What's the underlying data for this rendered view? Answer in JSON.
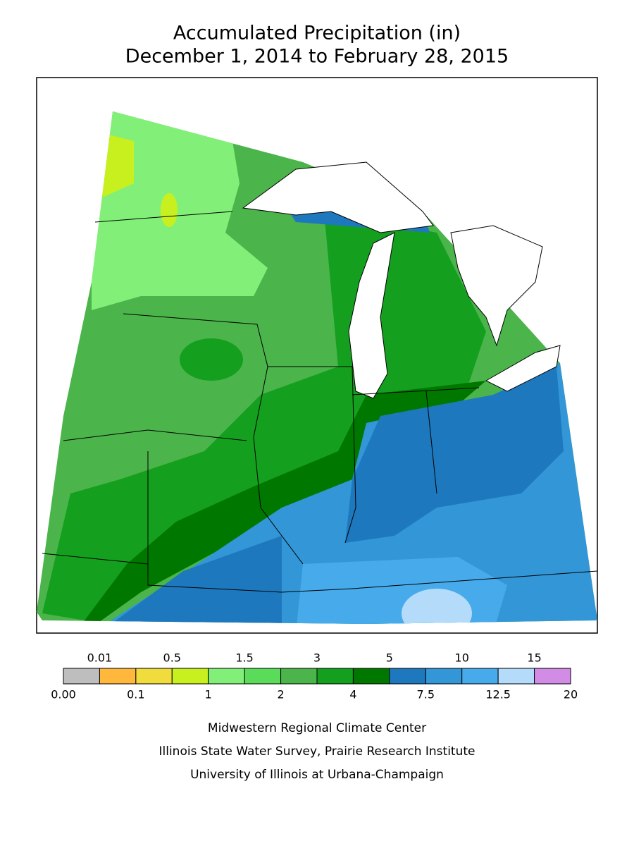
{
  "title": [
    "Accumulated Precipitation (in)",
    "December 1, 2014 to February 28, 2015"
  ],
  "legend": {
    "boundaries": [
      {
        "value": 0,
        "label": "0.00"
      },
      0.01,
      0.1,
      0.5,
      1,
      1.5,
      2,
      3,
      4,
      5,
      7.5,
      10,
      12.5,
      15,
      20
    ],
    "colors": [
      "#bebebe",
      "#ffb83c",
      "#f0dc3c",
      "#c8f01e",
      "#82f078",
      "#5adc5a",
      "#4bb44b",
      "#14a01e",
      "#007800",
      "#1e78be",
      "#3296d7",
      "#46aaeb",
      "#b4dcfa",
      "#d28ce6"
    ]
  },
  "credits": [
    "Midwestern Regional Climate Center",
    "Illinois State Water Survey, Prairie Research Institute",
    "University of Illinois at Urbana-Champaign"
  ]
}
